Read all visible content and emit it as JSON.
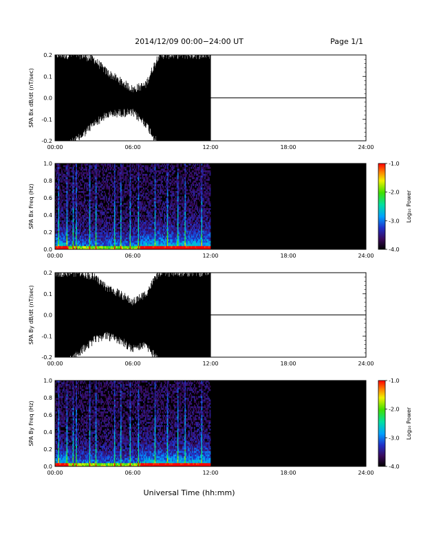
{
  "header": {
    "title": "2014/12/09   00:00−24:00 UT",
    "page": "Page 1/1"
  },
  "xlabel": "Universal Time (hh:mm)",
  "chart_data": [
    {
      "type": "line",
      "ylabel": "SPA Bx dB/dt (nT/sec)",
      "xlim": [
        "00:00",
        "24:00"
      ],
      "x_ticks": [
        "00:00",
        "06:00",
        "12:00",
        "18:00",
        "24:00"
      ],
      "ylim": [
        -0.2,
        0.2
      ],
      "y_ticks": [
        "-0.2",
        "-0.1",
        "0.0",
        "0.1",
        "0.2"
      ],
      "data_end": "12:00",
      "envelope": {
        "x": [
          "00:00",
          "01:00",
          "02:00",
          "03:00",
          "04:00",
          "05:00",
          "06:00",
          "07:00",
          "08:00",
          "09:00",
          "10:00",
          "11:00",
          "12:00"
        ],
        "upper": [
          0.2,
          0.2,
          0.2,
          0.18,
          0.12,
          0.08,
          0.04,
          0.06,
          0.2,
          0.2,
          0.2,
          0.2,
          0.2
        ],
        "lower": [
          -0.2,
          -0.2,
          -0.16,
          -0.1,
          -0.06,
          -0.05,
          -0.05,
          -0.1,
          -0.2,
          -0.2,
          -0.2,
          -0.2,
          -0.2
        ]
      }
    },
    {
      "type": "heatmap",
      "ylabel": "SPA Bx Freq (Hz)",
      "xlim": [
        "00:00",
        "24:00"
      ],
      "x_ticks": [
        "00:00",
        "06:00",
        "12:00",
        "18:00",
        "24:00"
      ],
      "ylim": [
        0.0,
        1.0
      ],
      "y_ticks": [
        "0.0",
        "0.2",
        "0.4",
        "0.6",
        "0.8",
        "1.0"
      ],
      "colorbar": {
        "label": "Log₁₀ Power",
        "ticks": [
          "-1.0",
          "-2.0",
          "-3.0",
          "-4.0"
        ],
        "range": [
          -4.0,
          -1.0
        ]
      },
      "data_end": "12:00"
    },
    {
      "type": "line",
      "ylabel": "SPA By dB/dt (nT/sec)",
      "xlim": [
        "00:00",
        "24:00"
      ],
      "x_ticks": [
        "00:00",
        "06:00",
        "12:00",
        "18:00",
        "24:00"
      ],
      "ylim": [
        -0.2,
        0.2
      ],
      "y_ticks": [
        "-0.2",
        "-0.1",
        "0.0",
        "0.1",
        "0.2"
      ],
      "data_end": "12:00",
      "envelope": {
        "x": [
          "00:00",
          "01:00",
          "02:00",
          "03:00",
          "04:00",
          "05:00",
          "06:00",
          "07:00",
          "08:00",
          "09:00",
          "10:00",
          "11:00",
          "12:00"
        ],
        "upper": [
          0.2,
          0.2,
          0.2,
          0.18,
          0.13,
          0.1,
          0.06,
          0.1,
          0.2,
          0.2,
          0.2,
          0.2,
          0.2
        ],
        "lower": [
          -0.2,
          -0.2,
          -0.15,
          -0.1,
          -0.08,
          -0.1,
          -0.14,
          -0.12,
          -0.2,
          -0.2,
          -0.2,
          -0.2,
          -0.2
        ]
      }
    },
    {
      "type": "heatmap",
      "ylabel": "SPA By Freq (Hz)",
      "xlim": [
        "00:00",
        "24:00"
      ],
      "x_ticks": [
        "00:00",
        "06:00",
        "12:00",
        "18:00",
        "24:00"
      ],
      "ylim": [
        0.0,
        1.0
      ],
      "y_ticks": [
        "0.0",
        "0.2",
        "0.4",
        "0.6",
        "0.8",
        "1.0"
      ],
      "colorbar": {
        "label": "Log₁₀ Power",
        "ticks": [
          "-1.0",
          "-2.0",
          "-3.0",
          "-4.0"
        ],
        "range": [
          -4.0,
          -1.0
        ]
      },
      "data_end": "12:00"
    }
  ]
}
